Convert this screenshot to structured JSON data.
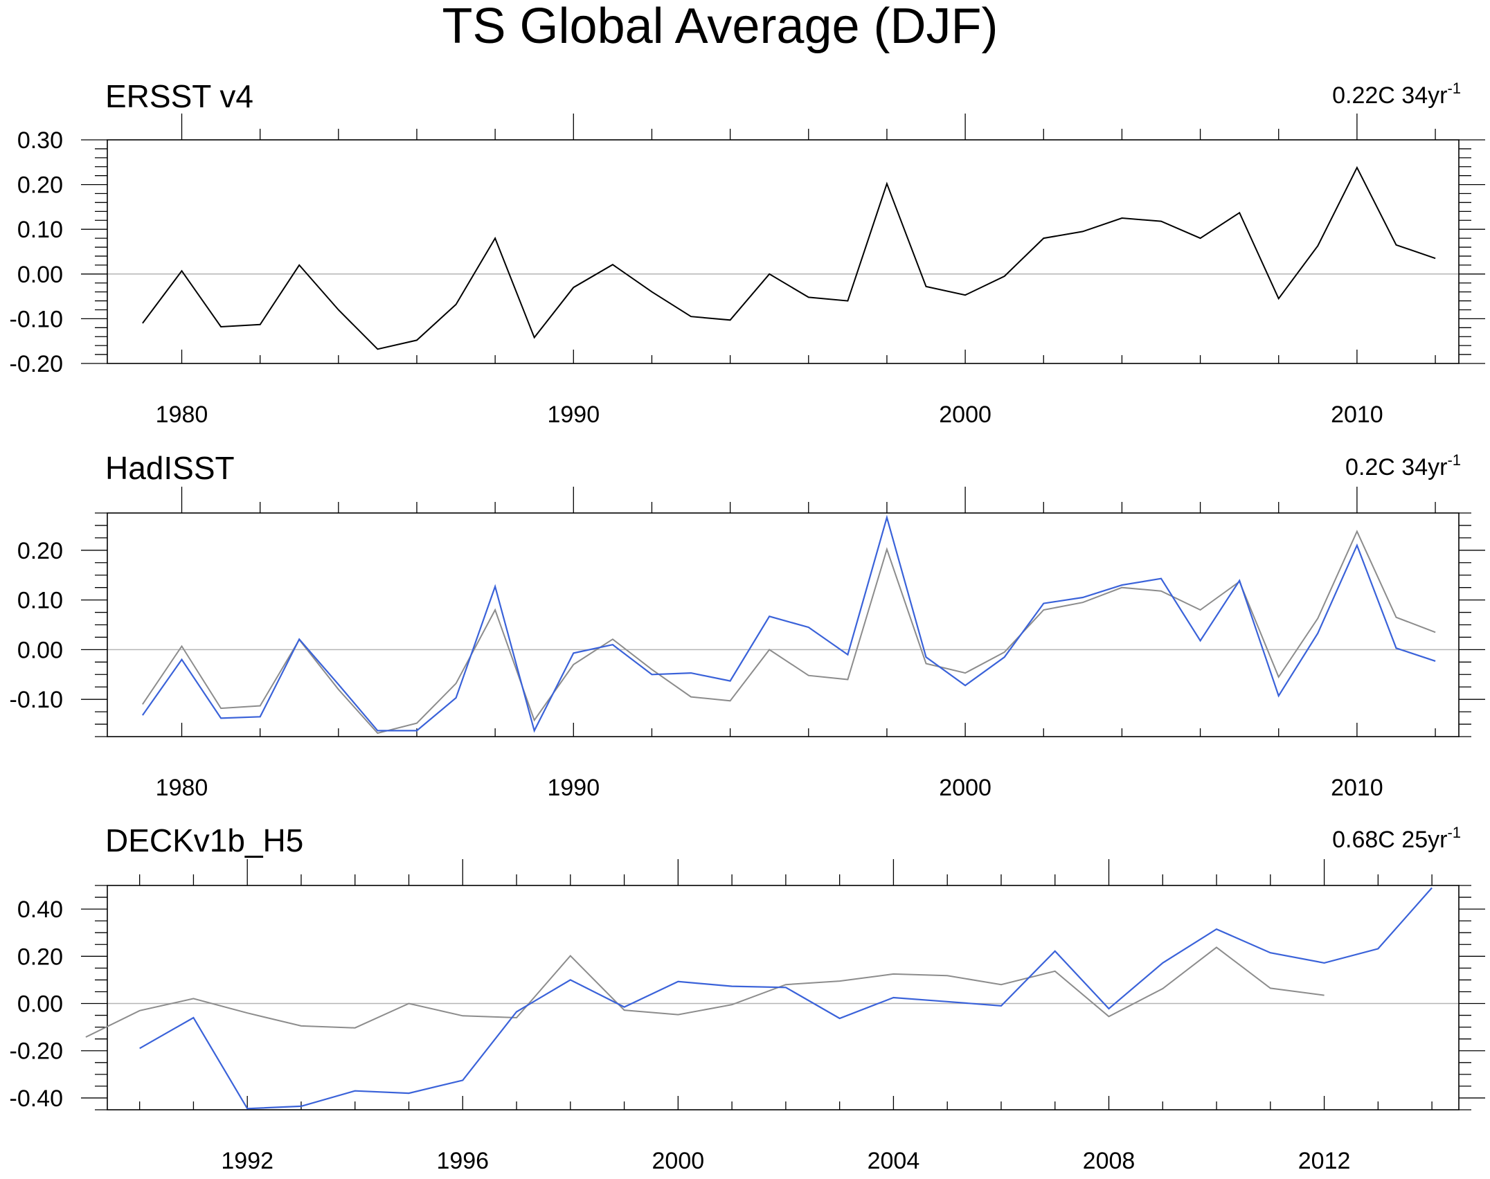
{
  "figure": {
    "title": "TS Global Average (DJF)"
  },
  "colors": {
    "reference": "#000000",
    "reference_overlay": "#8c8c8c",
    "model": "#3a62d9",
    "zero_line": "#b4b4b4",
    "frame": "#000000"
  },
  "chart_data": [
    {
      "type": "line",
      "title": "ERSST v4",
      "trend_value": "0.22C 34yr",
      "trend_exp": "-1",
      "xlim": [
        1978.1,
        2012.6
      ],
      "ylim": [
        -0.2,
        0.3
      ],
      "yticks": [
        -0.2,
        -0.1,
        0.0,
        0.1,
        0.2,
        0.3
      ],
      "ytick_labels": [
        "-0.20",
        "-0.10",
        "0.00",
        "0.10",
        "0.20",
        "0.30"
      ],
      "xticks": [
        1980,
        1990,
        2000,
        2010
      ],
      "xtick_labels": [
        "1980",
        "1990",
        "2000",
        "2010"
      ],
      "x_minor_step": 2,
      "y_minor_step": 0.02,
      "series": [
        {
          "name": "ERSST v4",
          "role": "reference",
          "x": [
            1979,
            1980,
            1981,
            1982,
            1983,
            1984,
            1985,
            1986,
            1987,
            1988,
            1989,
            1990,
            1991,
            1992,
            1993,
            1994,
            1995,
            1996,
            1997,
            1998,
            1999,
            2000,
            2001,
            2002,
            2003,
            2004,
            2005,
            2006,
            2007,
            2008,
            2009,
            2010,
            2011,
            2012
          ],
          "values": [
            -0.11,
            0.007,
            -0.118,
            -0.113,
            0.02,
            -0.08,
            -0.168,
            -0.148,
            -0.068,
            0.08,
            -0.142,
            -0.03,
            0.021,
            -0.04,
            -0.095,
            -0.103,
            0.0,
            -0.052,
            -0.06,
            0.202,
            -0.028,
            -0.047,
            -0.005,
            0.08,
            0.095,
            0.125,
            0.118,
            0.08,
            0.137,
            -0.055,
            0.063,
            0.238,
            0.065,
            0.035
          ]
        }
      ]
    },
    {
      "type": "line",
      "title": "HadISST",
      "trend_value": "0.2C 34yr",
      "trend_exp": "-1",
      "xlim": [
        1978.1,
        2012.6
      ],
      "ylim": [
        -0.175,
        0.275
      ],
      "yticks": [
        -0.1,
        0.0,
        0.1,
        0.2
      ],
      "ytick_labels": [
        "-0.10",
        "0.00",
        "0.10",
        "0.20"
      ],
      "xticks": [
        1980,
        1990,
        2000,
        2010
      ],
      "xtick_labels": [
        "1980",
        "1990",
        "2000",
        "2010"
      ],
      "x_minor_step": 2,
      "y_minor_step": 0.025,
      "series": [
        {
          "name": "ERSST v4",
          "role": "reference_overlay",
          "x": [
            1979,
            1980,
            1981,
            1982,
            1983,
            1984,
            1985,
            1986,
            1987,
            1988,
            1989,
            1990,
            1991,
            1992,
            1993,
            1994,
            1995,
            1996,
            1997,
            1998,
            1999,
            2000,
            2001,
            2002,
            2003,
            2004,
            2005,
            2006,
            2007,
            2008,
            2009,
            2010,
            2011,
            2012
          ],
          "values": [
            -0.11,
            0.007,
            -0.118,
            -0.113,
            0.02,
            -0.08,
            -0.168,
            -0.148,
            -0.068,
            0.08,
            -0.142,
            -0.03,
            0.021,
            -0.04,
            -0.095,
            -0.103,
            0.0,
            -0.052,
            -0.06,
            0.202,
            -0.028,
            -0.047,
            -0.005,
            0.08,
            0.095,
            0.125,
            0.118,
            0.08,
            0.137,
            -0.055,
            0.063,
            0.238,
            0.065,
            0.035
          ]
        },
        {
          "name": "HadISST",
          "role": "model",
          "x": [
            1979,
            1980,
            1981,
            1982,
            1983,
            1984,
            1985,
            1986,
            1987,
            1988,
            1989,
            1990,
            1991,
            1992,
            1993,
            1994,
            1995,
            1996,
            1997,
            1998,
            1999,
            2000,
            2001,
            2002,
            2003,
            2004,
            2005,
            2006,
            2007,
            2008,
            2009,
            2010,
            2011,
            2012
          ],
          "values": [
            -0.132,
            -0.02,
            -0.138,
            -0.135,
            0.021,
            -0.07,
            -0.163,
            -0.163,
            -0.097,
            0.127,
            -0.163,
            -0.007,
            0.01,
            -0.05,
            -0.047,
            -0.063,
            0.067,
            0.045,
            -0.01,
            0.266,
            -0.015,
            -0.072,
            -0.015,
            0.093,
            0.105,
            0.13,
            0.143,
            0.018,
            0.139,
            -0.093,
            0.033,
            0.21,
            0.003,
            -0.023
          ]
        }
      ]
    },
    {
      "type": "line",
      "title": "DECKv1b_H5",
      "trend_value": "0.68C 25yr",
      "trend_exp": "-1",
      "xlim": [
        1989.4,
        2014.5
      ],
      "ylim": [
        -0.45,
        0.5
      ],
      "yticks": [
        -0.4,
        -0.2,
        0.0,
        0.2,
        0.4
      ],
      "ytick_labels": [
        "-0.40",
        "-0.20",
        "0.00",
        "0.20",
        "0.40"
      ],
      "xticks": [
        1992,
        1996,
        2000,
        2004,
        2008,
        2012
      ],
      "xtick_labels": [
        "1992",
        "1996",
        "2000",
        "2004",
        "2008",
        "2012"
      ],
      "x_minor_step": 1,
      "y_minor_step": 0.05,
      "series": [
        {
          "name": "ERSST v4",
          "role": "reference_overlay",
          "x": [
            1989,
            1990,
            1991,
            1992,
            1993,
            1994,
            1995,
            1996,
            1997,
            1998,
            1999,
            2000,
            2001,
            2002,
            2003,
            2004,
            2005,
            2006,
            2007,
            2008,
            2009,
            2010,
            2011,
            2012
          ],
          "values": [
            -0.142,
            -0.03,
            0.021,
            -0.04,
            -0.095,
            -0.103,
            0.0,
            -0.052,
            -0.06,
            0.202,
            -0.028,
            -0.047,
            -0.005,
            0.08,
            0.095,
            0.125,
            0.118,
            0.08,
            0.137,
            -0.055,
            0.063,
            0.238,
            0.065,
            0.035
          ]
        },
        {
          "name": "DECKv1b_H5",
          "role": "model",
          "x": [
            1990,
            1991,
            1992,
            1993,
            1994,
            1995,
            1996,
            1997,
            1998,
            1999,
            2000,
            2001,
            2002,
            2003,
            2004,
            2005,
            2006,
            2007,
            2008,
            2009,
            2010,
            2011,
            2012,
            2013,
            2014
          ],
          "values": [
            -0.19,
            -0.06,
            -0.445,
            -0.435,
            -0.37,
            -0.38,
            -0.325,
            -0.035,
            0.1,
            -0.015,
            0.093,
            0.073,
            0.068,
            -0.063,
            0.025,
            0.008,
            -0.01,
            0.222,
            -0.022,
            0.172,
            0.315,
            0.215,
            0.172,
            0.232,
            0.49
          ]
        }
      ]
    }
  ]
}
